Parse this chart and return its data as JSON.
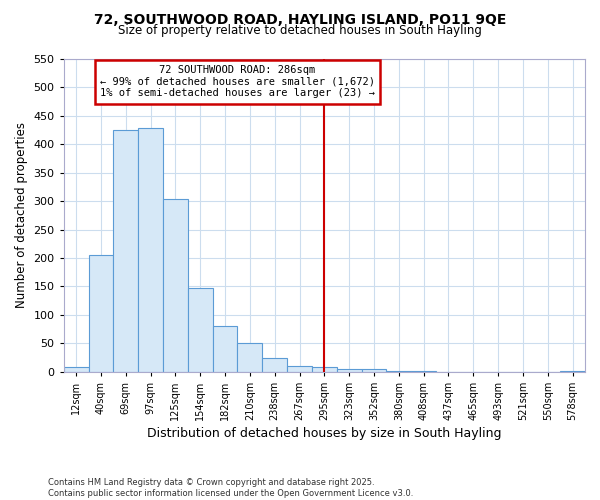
{
  "title1": "72, SOUTHWOOD ROAD, HAYLING ISLAND, PO11 9QE",
  "title2": "Size of property relative to detached houses in South Hayling",
  "xlabel": "Distribution of detached houses by size in South Hayling",
  "ylabel": "Number of detached properties",
  "bin_labels": [
    "12sqm",
    "40sqm",
    "69sqm",
    "97sqm",
    "125sqm",
    "154sqm",
    "182sqm",
    "210sqm",
    "238sqm",
    "267sqm",
    "295sqm",
    "323sqm",
    "352sqm",
    "380sqm",
    "408sqm",
    "437sqm",
    "465sqm",
    "493sqm",
    "521sqm",
    "550sqm",
    "578sqm"
  ],
  "bin_values": [
    8,
    205,
    425,
    428,
    303,
    148,
    80,
    50,
    24,
    10,
    8,
    5,
    4,
    2,
    1,
    0,
    0,
    0,
    0,
    0,
    2
  ],
  "bar_color": "#d6e8f7",
  "bar_edge_color": "#5b9bd5",
  "vline_x_idx": 10,
  "vline_color": "#cc0000",
  "annotation_title": "72 SOUTHWOOD ROAD: 286sqm",
  "annotation_line1": "← 99% of detached houses are smaller (1,672)",
  "annotation_line2": "1% of semi-detached houses are larger (23) →",
  "annotation_box_color": "#cc0000",
  "ylim_max": 550,
  "yticks": [
    0,
    50,
    100,
    150,
    200,
    250,
    300,
    350,
    400,
    450,
    500,
    550
  ],
  "footnote1": "Contains HM Land Registry data © Crown copyright and database right 2025.",
  "footnote2": "Contains public sector information licensed under the Open Government Licence v3.0.",
  "bg_color": "#ffffff",
  "plot_bg_color": "#ffffff",
  "grid_color": "#ccddee"
}
